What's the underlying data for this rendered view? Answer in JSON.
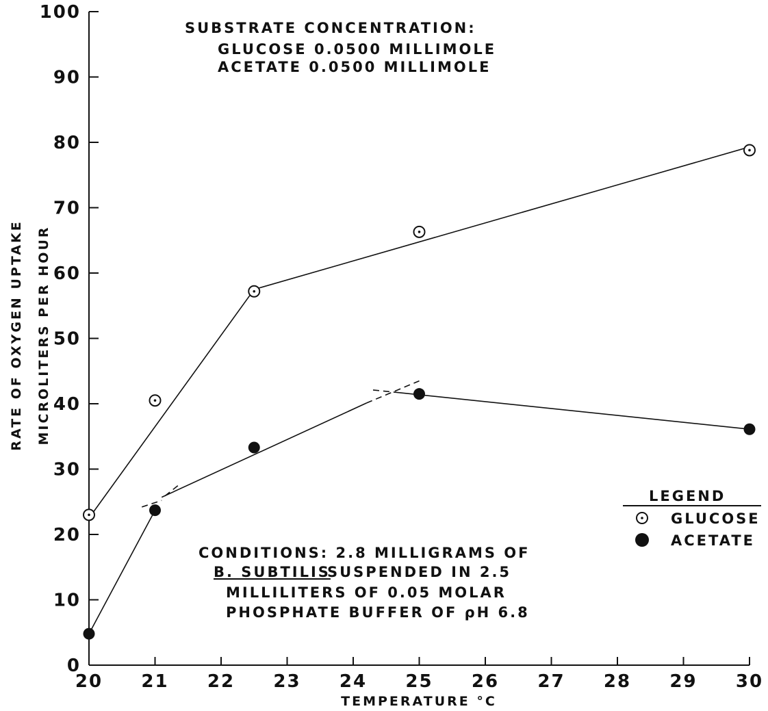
{
  "chart_data": {
    "type": "line",
    "xlabel": "TEMPERATURE °C",
    "ylabel_lines": [
      "RATE OF OXYGEN UPTAKE",
      "MICROLITERS PER HOUR"
    ],
    "xlim": [
      20,
      30
    ],
    "ylim": [
      0,
      100
    ],
    "x_ticks": [
      20,
      21,
      22,
      23,
      24,
      25,
      26,
      27,
      28,
      29,
      30
    ],
    "y_ticks": [
      0,
      10,
      20,
      30,
      40,
      50,
      60,
      70,
      80,
      90,
      100
    ],
    "grid": false,
    "series": [
      {
        "name": "GLUCOSE",
        "marker": "dotted-circle",
        "points": [
          {
            "x": 20,
            "y": 23
          },
          {
            "x": 21,
            "y": 40.5
          },
          {
            "x": 22.5,
            "y": 57.2
          },
          {
            "x": 25,
            "y": 66.3
          },
          {
            "x": 30,
            "y": 78.8
          }
        ],
        "fit_line": [
          [
            20,
            22.5
          ],
          [
            22.5,
            57.5
          ],
          [
            30,
            79.3
          ]
        ]
      },
      {
        "name": "ACETATE",
        "marker": "filled-circle",
        "points": [
          {
            "x": 20,
            "y": 4.8
          },
          {
            "x": 21,
            "y": 23.7
          },
          {
            "x": 22.5,
            "y": 33.3
          },
          {
            "x": 25,
            "y": 41.5
          },
          {
            "x": 30,
            "y": 36.1
          }
        ],
        "fit_line": [
          [
            20,
            4.8
          ],
          [
            21,
            23.7
          ]
        ],
        "fit_line_2": [
          [
            21.1,
            25.7
          ],
          [
            24.2,
            40.1
          ]
        ],
        "fit_line_3": [
          [
            24.7,
            41.7
          ],
          [
            30,
            36.1
          ]
        ],
        "dashed_extensions": [
          [
            [
              20.8,
              24.2
            ],
            [
              21.1,
              25.2
            ]
          ],
          [
            [
              21.15,
              25.9
            ],
            [
              21.35,
              27.5
            ]
          ],
          [
            [
              24.2,
              40.1
            ],
            [
              25,
              43.5
            ]
          ],
          [
            [
              24.3,
              42.1
            ],
            [
              24.7,
              41.7
            ]
          ]
        ]
      }
    ],
    "legend": {
      "title": "LEGEND",
      "position": "right",
      "entries": [
        {
          "label": "GLUCOSE",
          "marker": "dotted-circle"
        },
        {
          "label": "ACETATE",
          "marker": "filled-circle"
        }
      ]
    },
    "annotations": {
      "substrate": [
        "SUBSTRATE CONCENTRATION:",
        "GLUCOSE 0.0500 MILLIMOLE",
        "ACETATE 0.0500 MILLIMOLE"
      ],
      "conditions_line1": "CONDITIONS: 2.8 MILLIGRAMS OF",
      "conditions_line2_species": "B. SUBTILIS",
      "conditions_line2_rest": "SUSPENDED IN 2.5",
      "conditions_line3": "MILLILITERS OF 0.05 MOLAR",
      "conditions_line4": "PHOSPHATE BUFFER OF ρH 6.8"
    }
  }
}
